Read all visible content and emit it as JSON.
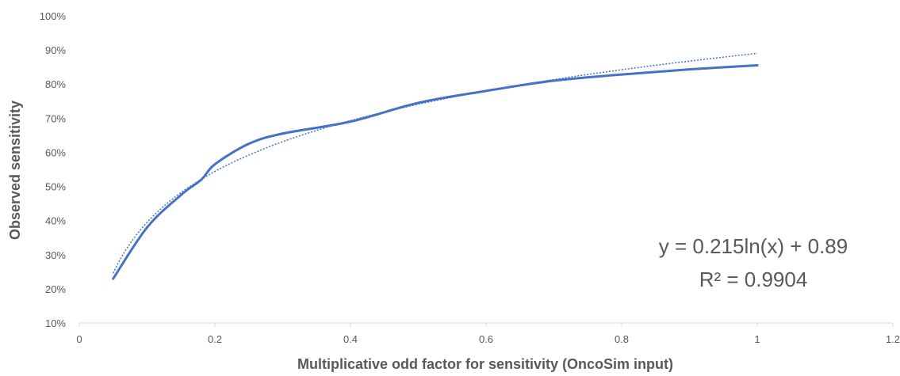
{
  "chart_data": {
    "type": "line",
    "title": "",
    "xlabel": "Multiplicative odd factor for sensitivity (OncoSim input)",
    "ylabel": "Observed sensitivity",
    "xlim": [
      0,
      1.2
    ],
    "ylim": [
      0.1,
      1.0
    ],
    "x_ticks": [
      0,
      0.2,
      0.4,
      0.6,
      0.8,
      1,
      1.2
    ],
    "x_tick_labels": [
      "0",
      "0.2",
      "0.4",
      "0.6",
      "0.8",
      "1",
      "1.2"
    ],
    "y_ticks": [
      0.1,
      0.2,
      0.3,
      0.4,
      0.5,
      0.6,
      0.7,
      0.8,
      0.9,
      1.0
    ],
    "y_tick_labels": [
      "10%",
      "20%",
      "30%",
      "40%",
      "50%",
      "60%",
      "70%",
      "80%",
      "90%",
      "100%"
    ],
    "grid": false,
    "legend": false,
    "series": [
      {
        "style": "solid",
        "color": "#4472C4",
        "x": [
          0.05,
          0.1,
          0.15,
          0.18,
          0.2,
          0.25,
          0.3,
          0.4,
          0.5,
          0.6,
          0.7,
          0.8,
          0.9,
          1.0
        ],
        "y": [
          0.23,
          0.38,
          0.475,
          0.52,
          0.565,
          0.625,
          0.655,
          0.69,
          0.745,
          0.78,
          0.81,
          0.828,
          0.843,
          0.855
        ]
      },
      {
        "style": "dotted",
        "color": "#4472C4",
        "trendline": "logarithmic",
        "equation": {
          "a": 0.215,
          "b": 0.89
        },
        "x_range": [
          0.05,
          1.0
        ]
      }
    ],
    "annotations": [
      "y = 0.215ln(x) + 0.89",
      "R² = 0.9904"
    ]
  }
}
